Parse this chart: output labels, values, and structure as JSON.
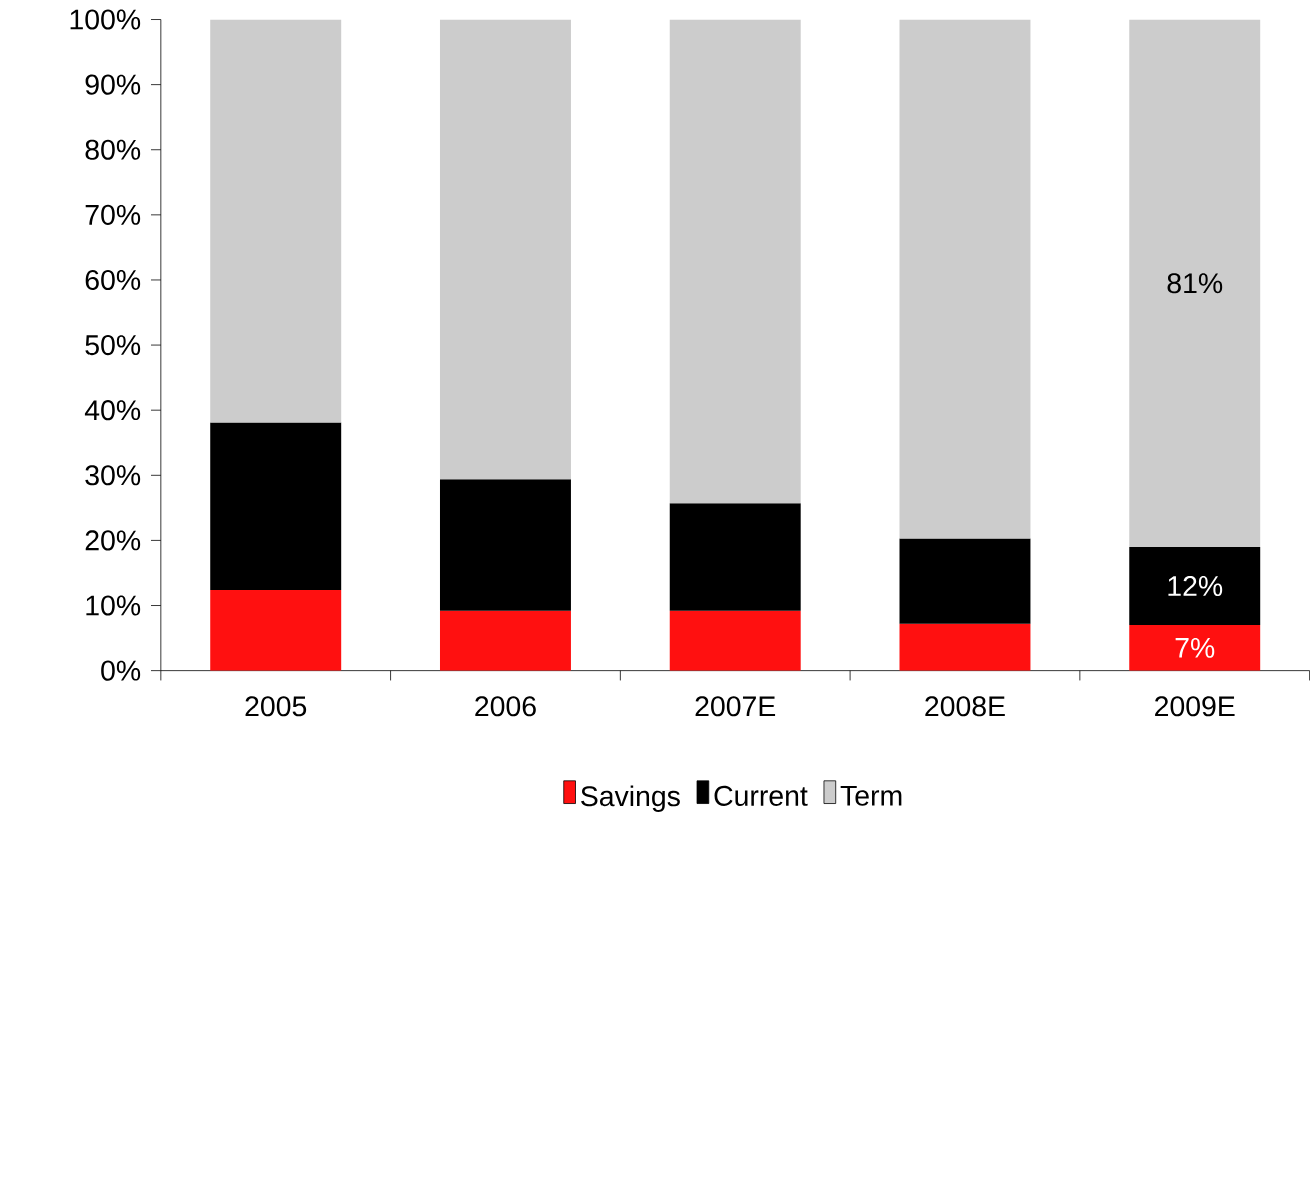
{
  "chart_data": {
    "type": "bar",
    "stacked": true,
    "categories": [
      "2005",
      "2006",
      "2007E",
      "2008E",
      "2009E"
    ],
    "series": [
      {
        "name": "Savings",
        "color": "#ff1010",
        "values": [
          12.4,
          9.2,
          9.2,
          7.2,
          7
        ],
        "value_labels": [
          null,
          null,
          null,
          null,
          "7%"
        ]
      },
      {
        "name": "Current",
        "color": "#000000",
        "values": [
          25.7,
          20.2,
          16.5,
          13.1,
          12
        ],
        "value_labels": [
          null,
          null,
          null,
          null,
          "12%"
        ]
      },
      {
        "name": "Term",
        "color": "#cccccc",
        "values": [
          61.9,
          70.6,
          74.3,
          79.7,
          81
        ],
        "value_labels": [
          null,
          null,
          null,
          null,
          "81%"
        ]
      }
    ],
    "ylim": [
      0,
      100
    ],
    "yticks": [
      {
        "value": 0,
        "label": "0%"
      },
      {
        "value": 10,
        "label": "10%"
      },
      {
        "value": 20,
        "label": "20%"
      },
      {
        "value": 30,
        "label": "30%"
      },
      {
        "value": 40,
        "label": "40%"
      },
      {
        "value": 50,
        "label": "50%"
      },
      {
        "value": 60,
        "label": "60%"
      },
      {
        "value": 70,
        "label": "70%"
      },
      {
        "value": 80,
        "label": "80%"
      },
      {
        "value": 90,
        "label": "90%"
      },
      {
        "value": 100,
        "label": "100%"
      }
    ],
    "grid": false,
    "legend": "bottom"
  }
}
